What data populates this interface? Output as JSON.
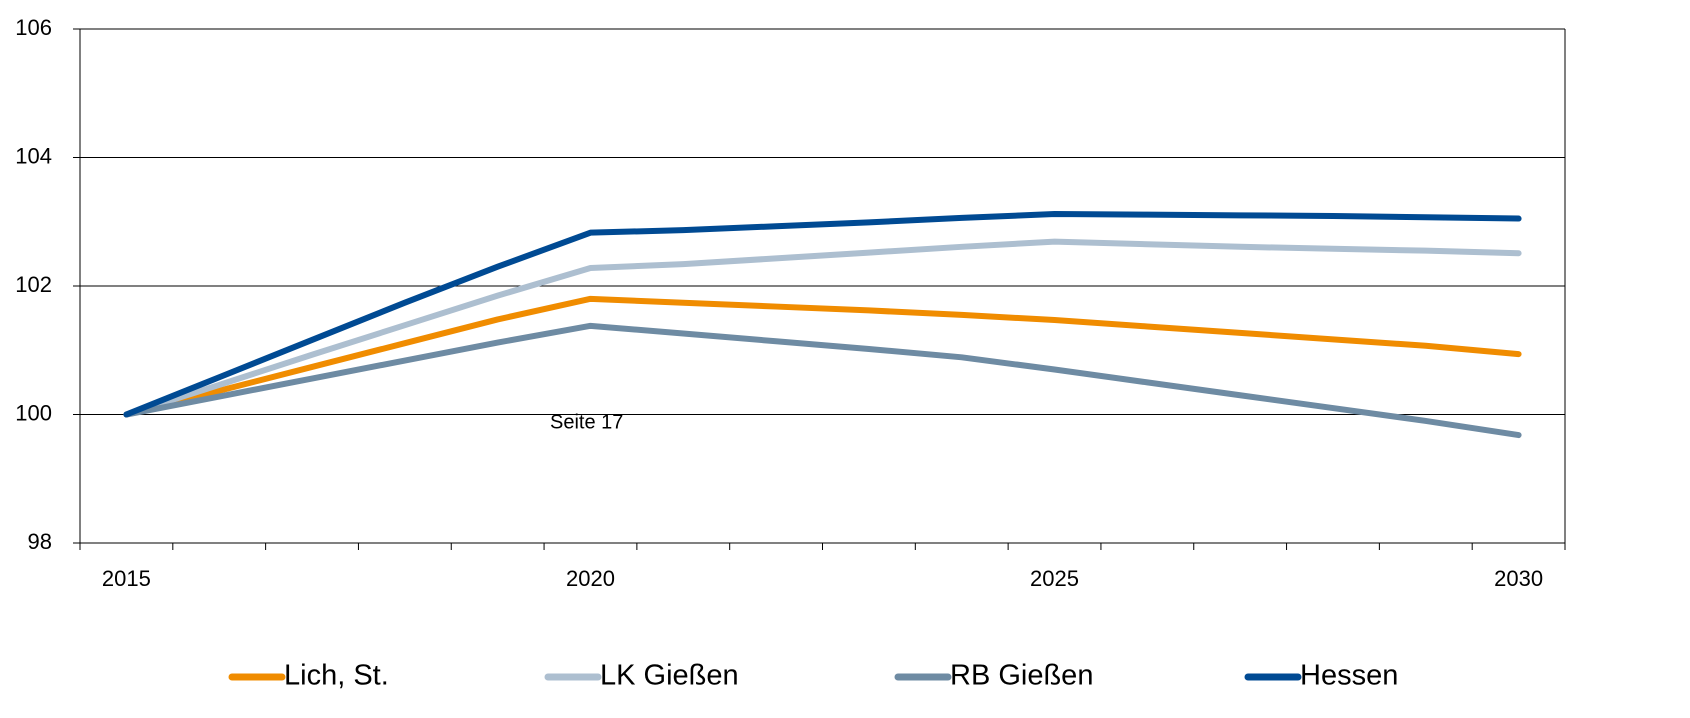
{
  "chart_data": {
    "type": "line",
    "categories": [
      "2015",
      null,
      null,
      null,
      null,
      "2020",
      null,
      null,
      null,
      null,
      "2025",
      null,
      null,
      null,
      null,
      "2030"
    ],
    "series": [
      {
        "name": "Lich, St.",
        "color": "#f08c00",
        "values": [
          100,
          100.37,
          100.74,
          101.11,
          101.48,
          101.8,
          101.74,
          101.68,
          101.62,
          101.55,
          101.47,
          101.37,
          101.27,
          101.17,
          101.07,
          100.94
        ]
      },
      {
        "name": "LK Gießen",
        "color": "#adbfd0",
        "values": [
          100,
          100.46,
          100.93,
          101.39,
          101.85,
          102.28,
          102.34,
          102.43,
          102.52,
          102.61,
          102.69,
          102.65,
          102.61,
          102.58,
          102.55,
          102.51
        ]
      },
      {
        "name": "RB Gießen",
        "color": "#6e8ba3",
        "values": [
          100,
          100.28,
          100.56,
          100.84,
          101.12,
          101.38,
          101.26,
          101.14,
          101.02,
          100.89,
          100.7,
          100.5,
          100.3,
          100.1,
          99.9,
          99.68
        ]
      },
      {
        "name": "Hessen",
        "color": "#004a93",
        "values": [
          100,
          100.58,
          101.16,
          101.74,
          102.3,
          102.83,
          102.87,
          102.93,
          102.99,
          103.06,
          103.12,
          103.11,
          103.1,
          103.09,
          103.07,
          103.05
        ]
      }
    ],
    "ylim": [
      98,
      106
    ],
    "yticks": [
      98,
      100,
      102,
      104,
      106
    ],
    "grid": true,
    "annotation": "Seite 17"
  }
}
